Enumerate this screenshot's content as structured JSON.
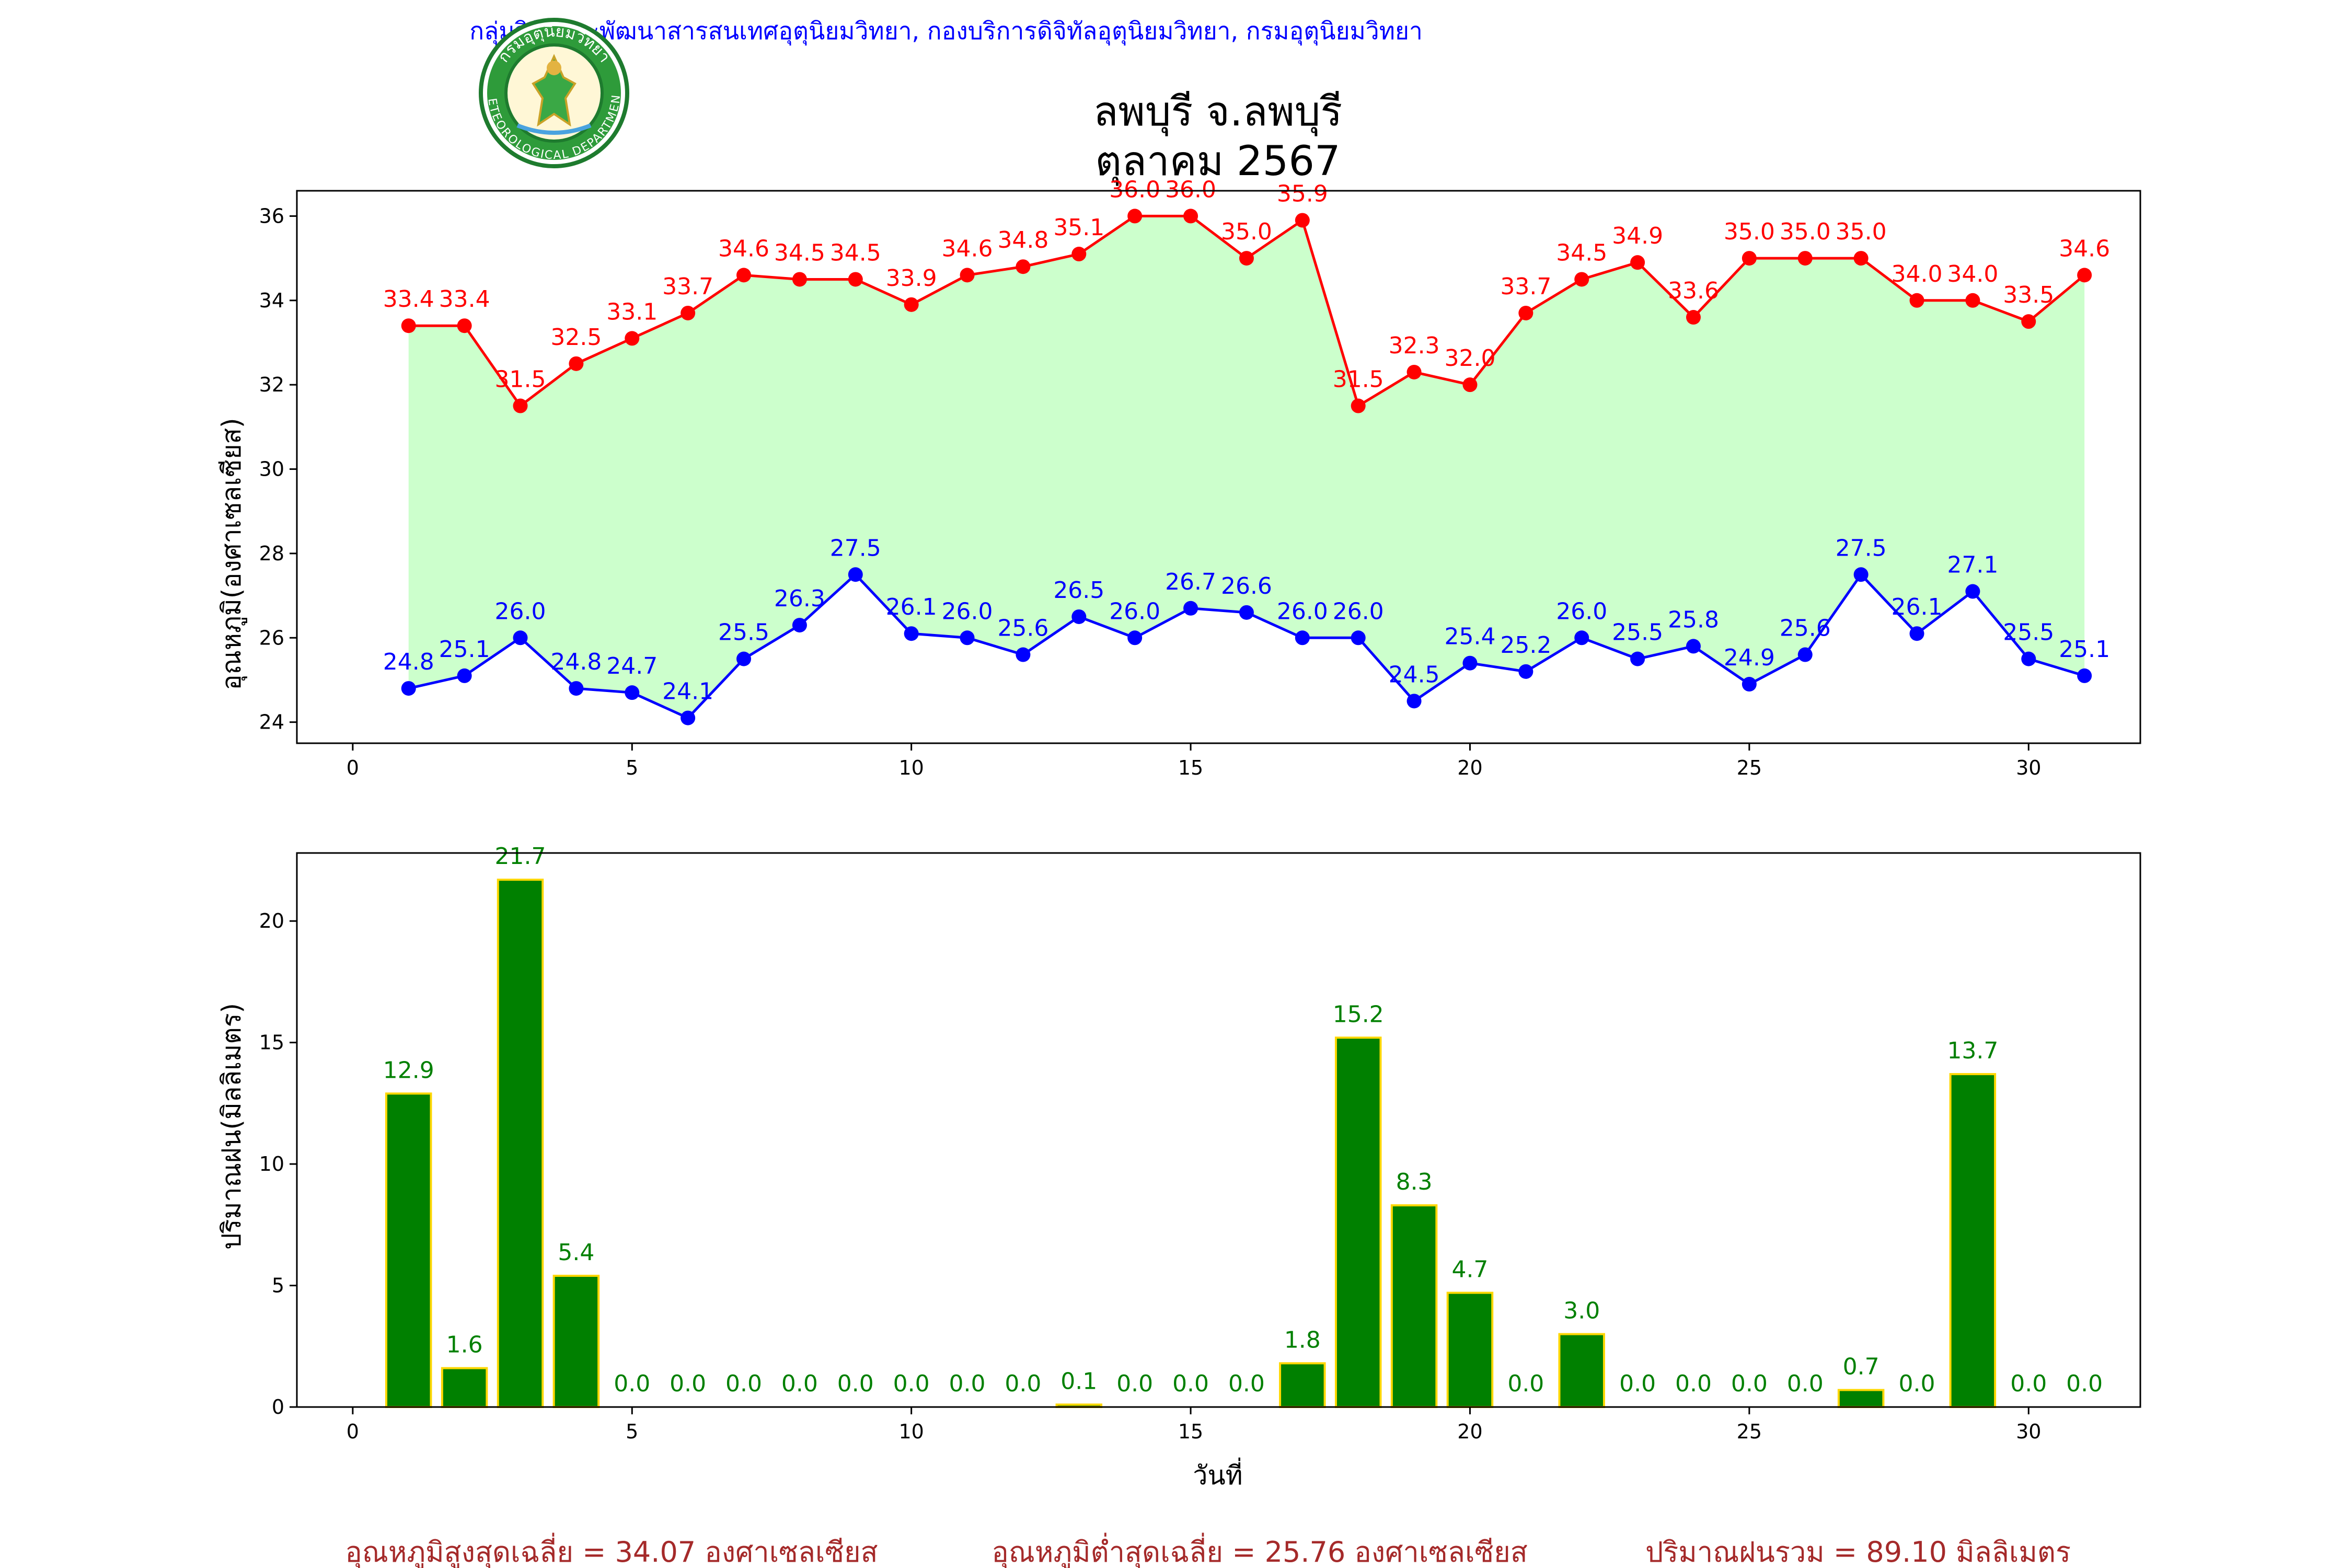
{
  "header": {
    "agency": "กลุ่มวิจัยและพัฒนาสารสนเทศอุตุนิยมวิทยา, กองบริการดิจิทัลอุตุนิยมวิทยา, กรมอุตุนิยมวิทยา",
    "title_line1": "ลพบุรี จ.ลพบุรี",
    "title_line2": "ตุลาคม 2567",
    "logo": {
      "icon": "meteorological-department-seal",
      "text_top": "กรมอุตุนิยมวิทยา",
      "text_bottom": "METEOROLOGICAL DEPARTMENT"
    }
  },
  "colors": {
    "tmax": "#ff0000",
    "tmin": "#0000ff",
    "fill": "#ccffcc",
    "rain_bar": "#008000",
    "rain_edge": "#ffd700",
    "summary": "#a52a2a",
    "agency": "#0000ff"
  },
  "chart_data": [
    {
      "type": "line",
      "ylabel": "อุณหภูมิ(องศาเซลเซียส)",
      "xlabel": "",
      "xlim": [
        -1,
        32
      ],
      "ylim": [
        23.5,
        36.6
      ],
      "xticks": [
        0,
        5,
        10,
        15,
        20,
        25,
        30
      ],
      "yticks": [
        24,
        26,
        28,
        30,
        32,
        34,
        36
      ],
      "grid": false,
      "x": [
        1,
        2,
        3,
        4,
        5,
        6,
        7,
        8,
        9,
        10,
        11,
        12,
        13,
        14,
        15,
        16,
        17,
        18,
        19,
        20,
        21,
        22,
        23,
        24,
        25,
        26,
        27,
        28,
        29,
        30,
        31
      ],
      "series": [
        {
          "values": [
            33.4,
            33.4,
            31.5,
            32.5,
            33.1,
            33.7,
            34.6,
            34.5,
            34.5,
            33.9,
            34.6,
            34.8,
            35.1,
            36.0,
            36.0,
            35.0,
            35.9,
            31.5,
            32.3,
            32.0,
            33.7,
            34.5,
            34.9,
            33.6,
            35.0,
            35.0,
            35.0,
            34.0,
            34.0,
            33.5,
            34.6
          ]
        },
        {
          "values": [
            24.8,
            25.1,
            26.0,
            24.8,
            24.7,
            24.1,
            25.5,
            26.3,
            27.5,
            26.1,
            26.0,
            25.6,
            26.5,
            26.0,
            26.7,
            26.6,
            26.0,
            26.0,
            24.5,
            25.4,
            25.2,
            26.0,
            25.5,
            25.8,
            24.9,
            25.6,
            27.5,
            26.1,
            27.1,
            25.5,
            25.1
          ]
        }
      ]
    },
    {
      "type": "bar",
      "ylabel": "ปริมาณฝน(มิลลิเมตร)",
      "xlabel": "วันที่",
      "xlim": [
        -1,
        32
      ],
      "ylim": [
        0,
        22.8
      ],
      "xticks": [
        0,
        5,
        10,
        15,
        20,
        25,
        30
      ],
      "yticks": [
        0,
        5,
        10,
        15,
        20
      ],
      "grid": false,
      "x": [
        1,
        2,
        3,
        4,
        5,
        6,
        7,
        8,
        9,
        10,
        11,
        12,
        13,
        14,
        15,
        16,
        17,
        18,
        19,
        20,
        21,
        22,
        23,
        24,
        25,
        26,
        27,
        28,
        29,
        30,
        31
      ],
      "values": [
        12.9,
        1.6,
        21.7,
        5.4,
        0.0,
        0.0,
        0.0,
        0.0,
        0.0,
        0.0,
        0.0,
        0.0,
        0.1,
        0.0,
        0.0,
        0.0,
        1.8,
        15.2,
        8.3,
        4.7,
        0.0,
        3.0,
        0.0,
        0.0,
        0.0,
        0.0,
        0.7,
        0.0,
        13.7,
        0.0,
        0.0
      ]
    }
  ],
  "summary": {
    "tmax_avg": "อุณหภูมิสูงสุดเฉลี่ย = 34.07 องศาเซลเซียส",
    "tmin_avg": "อุณหภูมิต่ำสุดเฉลี่ย = 25.76 องศาเซลเซียส",
    "rain_total": "ปริมาณฝนรวม = 89.10 มิลลิเมตร"
  }
}
